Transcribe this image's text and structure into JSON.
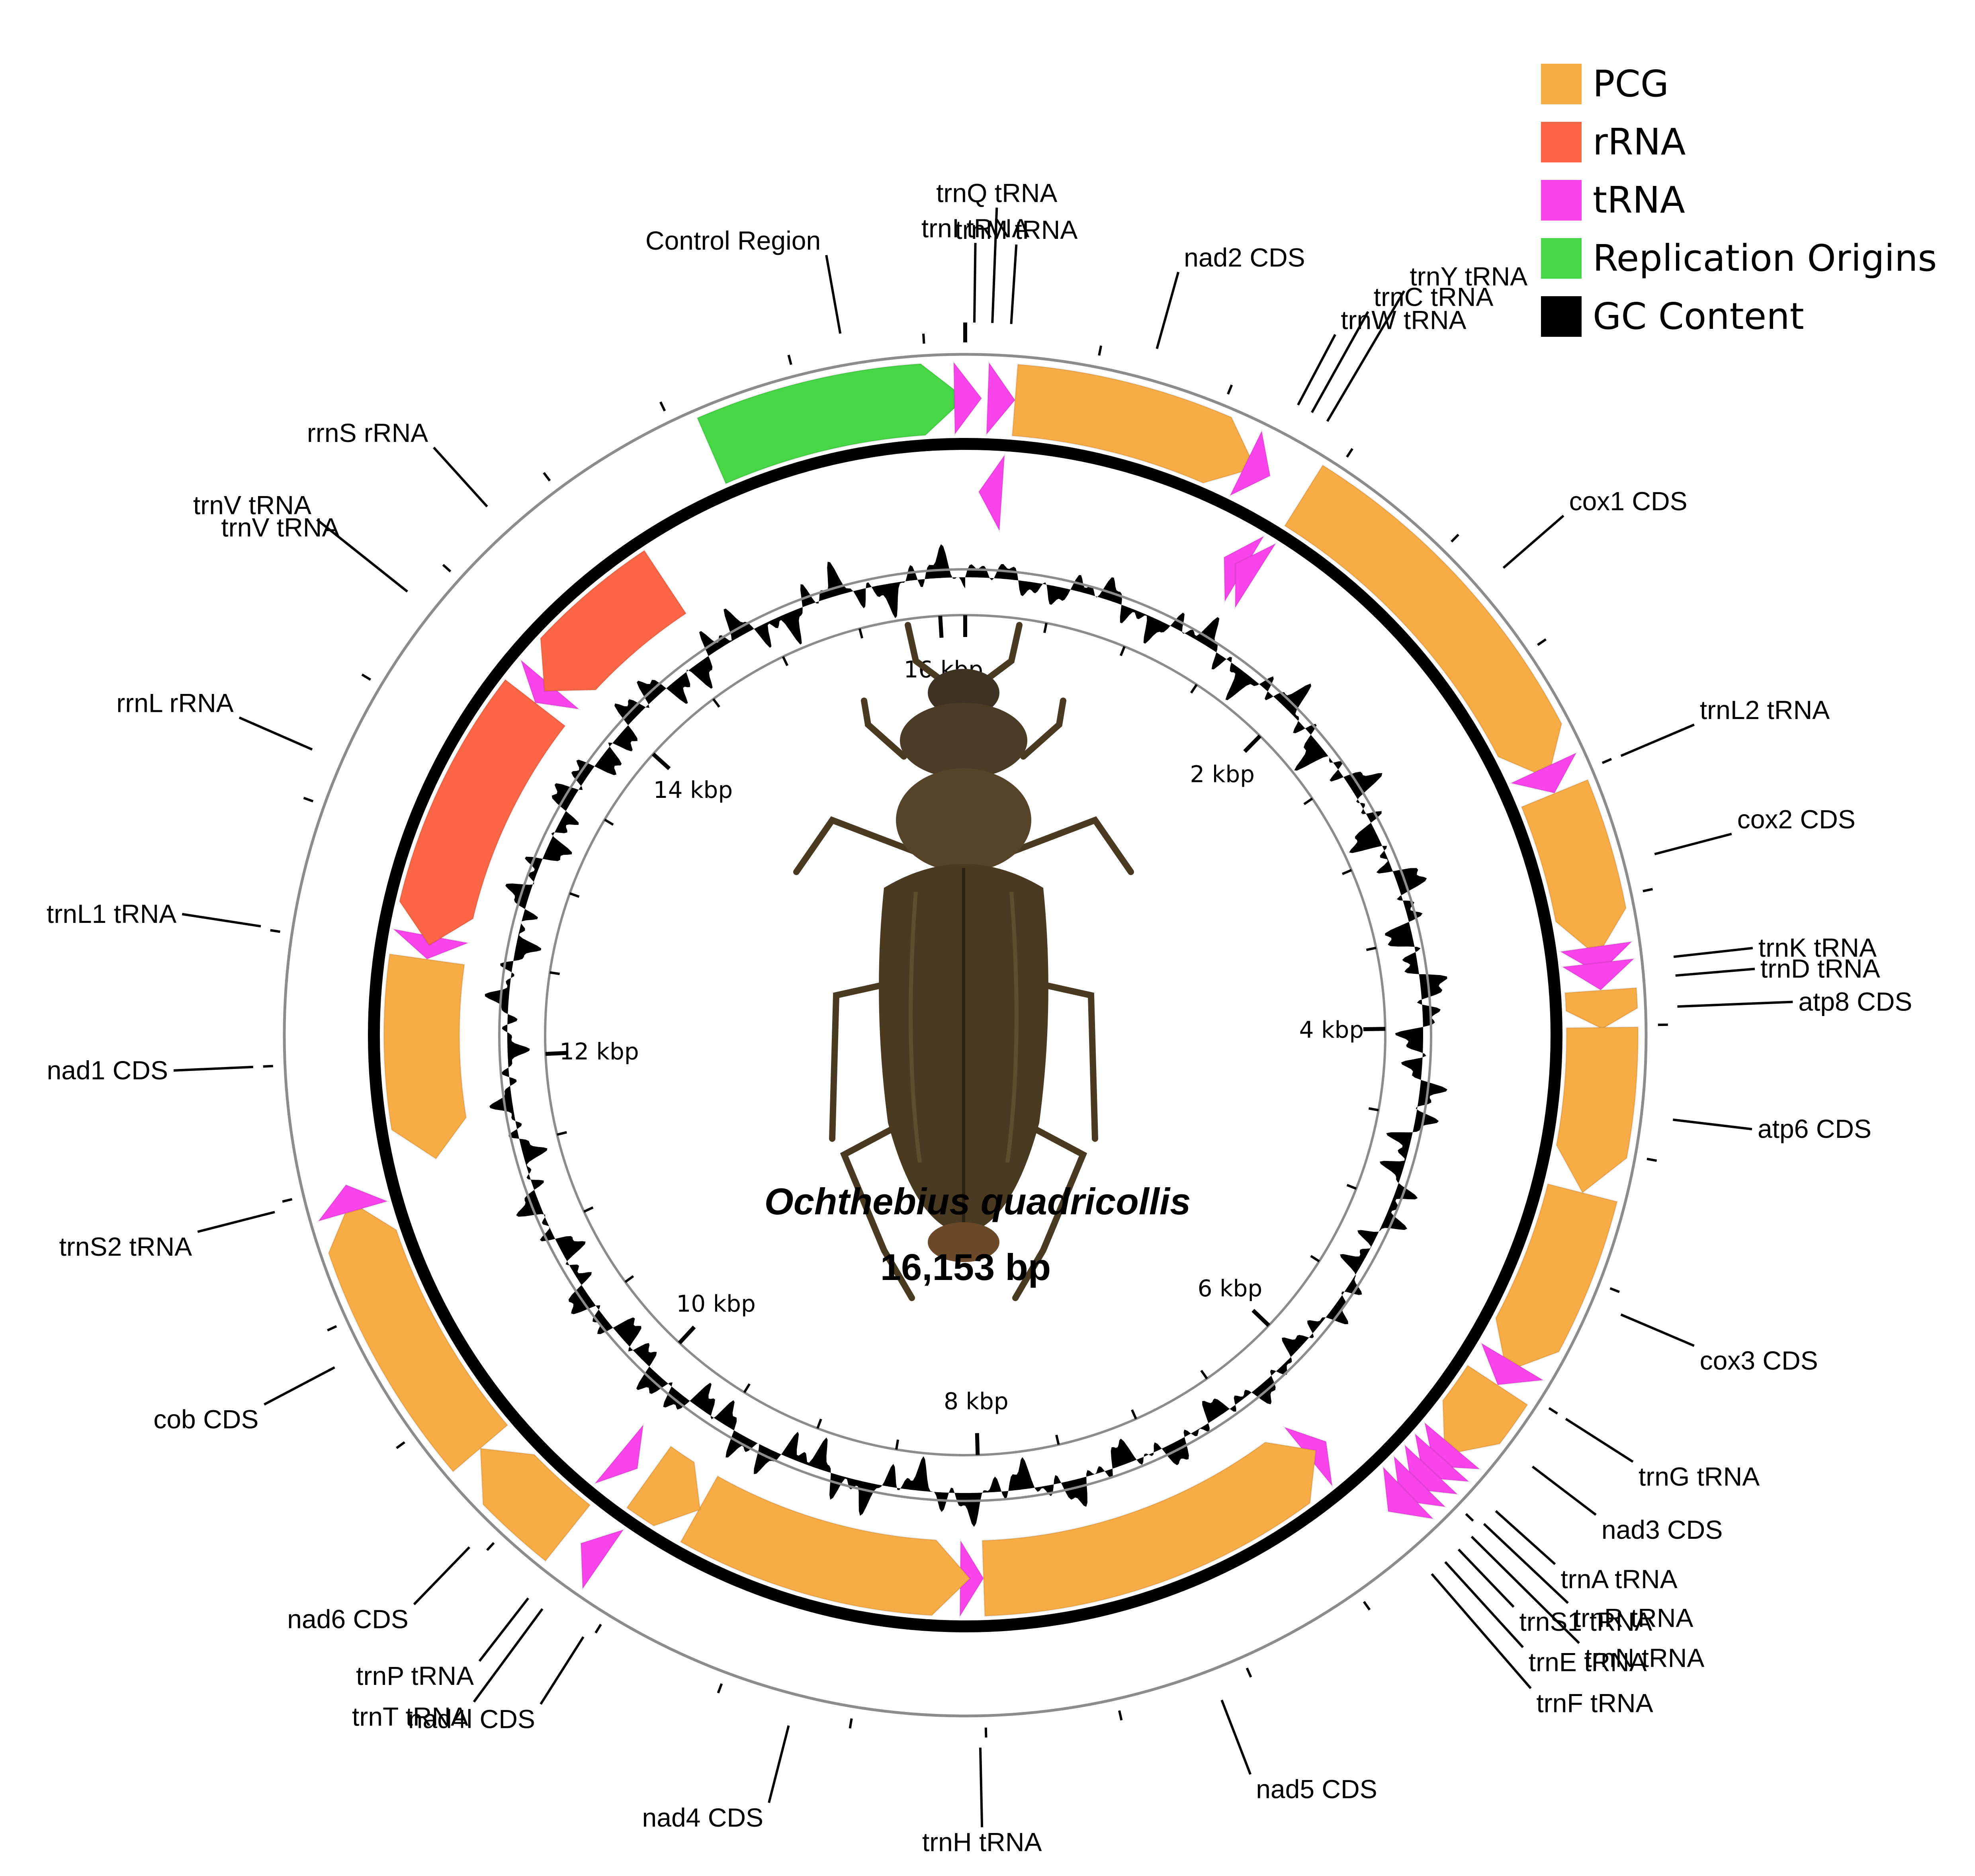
{
  "title": "Ochthebius quadricollis",
  "genome_length_label": "16,153 bp",
  "genome_length": 16153,
  "legend": [
    {
      "label": "PCG",
      "color": "#F8AC46"
    },
    {
      "label": "rRNA",
      "color": "#FC6545"
    },
    {
      "label": "tRNA",
      "color": "#FA44EB"
    },
    {
      "label": "Replication Origins",
      "color": "#46D646"
    },
    {
      "label": "GC Content",
      "color": "#000000"
    }
  ],
  "kbp_labels": [
    "2 kbp",
    "4 kbp",
    "6 kbp",
    "8 kbp",
    "10 kbp",
    "12 kbp",
    "14 kbp",
    "16 kbp"
  ],
  "kbp_values": [
    2000,
    4000,
    6000,
    8000,
    10000,
    12000,
    14000,
    16000
  ],
  "features": [
    {
      "name": "Control Region",
      "type": "origin",
      "start": 15100,
      "end": 16153,
      "strand": 1
    },
    {
      "name": "trnI",
      "type": "tRNA",
      "start": 0,
      "end": 66,
      "strand": 1
    },
    {
      "name": "trnQ",
      "type": "tRNA",
      "start": 64,
      "end": 132,
      "strand": -1
    },
    {
      "name": "trnM",
      "type": "tRNA",
      "start": 132,
      "end": 201,
      "strand": 1
    },
    {
      "name": "nad2",
      "type": "PCG",
      "start": 201,
      "end": 1216,
      "strand": 1
    },
    {
      "name": "trnW",
      "type": "tRNA",
      "start": 1215,
      "end": 1283,
      "strand": 1
    },
    {
      "name": "trnC",
      "type": "tRNA",
      "start": 1276,
      "end": 1337,
      "strand": -1
    },
    {
      "name": "trnY",
      "type": "tRNA",
      "start": 1338,
      "end": 1403,
      "strand": -1
    },
    {
      "name": "cox1",
      "type": "PCG",
      "start": 1440,
      "end": 2971,
      "strand": 1
    },
    {
      "name": "trnL2",
      "type": "tRNA",
      "start": 2971,
      "end": 3036,
      "strand": 1
    },
    {
      "name": "cox2",
      "type": "PCG",
      "start": 3037,
      "end": 3720,
      "strand": 1
    },
    {
      "name": "trnK",
      "type": "tRNA",
      "start": 3720,
      "end": 3790,
      "strand": 1
    },
    {
      "name": "trnD",
      "type": "tRNA",
      "start": 3790,
      "end": 3856,
      "strand": 1
    },
    {
      "name": "atp8",
      "type": "PCG",
      "start": 3857,
      "end": 4013,
      "strand": 1
    },
    {
      "name": "atp6",
      "type": "PCG",
      "start": 4007,
      "end": 4681,
      "strand": 1
    },
    {
      "name": "cox3",
      "type": "PCG",
      "start": 4681,
      "end": 5468,
      "strand": 1
    },
    {
      "name": "trnG",
      "type": "tRNA",
      "start": 5468,
      "end": 5532,
      "strand": 1
    },
    {
      "name": "nad3",
      "type": "PCG",
      "start": 5533,
      "end": 5887,
      "strand": 1
    },
    {
      "name": "trnA",
      "type": "tRNA",
      "start": 5886,
      "end": 5950,
      "strand": 1
    },
    {
      "name": "trnR",
      "type": "tRNA",
      "start": 5950,
      "end": 6013,
      "strand": 1
    },
    {
      "name": "trnN",
      "type": "tRNA",
      "start": 6013,
      "end": 6078,
      "strand": 1
    },
    {
      "name": "trnS1",
      "type": "tRNA",
      "start": 6078,
      "end": 6145,
      "strand": 1
    },
    {
      "name": "trnE",
      "type": "tRNA",
      "start": 6145,
      "end": 6210,
      "strand": 1
    },
    {
      "name": "trnF",
      "type": "tRNA",
      "start": 6210,
      "end": 6274,
      "strand": -1
    },
    {
      "name": "nad5",
      "type": "PCG",
      "start": 6274,
      "end": 7990,
      "strand": -1
    },
    {
      "name": "trnH",
      "type": "tRNA",
      "start": 7990,
      "end": 8054,
      "strand": -1
    },
    {
      "name": "nad4",
      "type": "PCG",
      "start": 8054,
      "end": 9392,
      "strand": -1
    },
    {
      "name": "nad4l",
      "type": "PCG",
      "start": 9386,
      "end": 9674,
      "strand": -1
    },
    {
      "name": "trnT",
      "type": "tRNA",
      "start": 9677,
      "end": 9741,
      "strand": 1
    },
    {
      "name": "trnP",
      "type": "tRNA",
      "start": 9741,
      "end": 9806,
      "strand": -1
    },
    {
      "name": "nad6",
      "type": "PCG",
      "start": 9808,
      "end": 10300,
      "strand": 1
    },
    {
      "name": "cob",
      "type": "PCG",
      "start": 10300,
      "end": 11437,
      "strand": 1
    },
    {
      "name": "trnS2",
      "type": "tRNA",
      "start": 11436,
      "end": 11505,
      "strand": 1
    },
    {
      "name": "nad1",
      "type": "PCG",
      "start": 11524,
      "end": 12475,
      "strand": -1
    },
    {
      "name": "trnL1",
      "type": "tRNA",
      "start": 12476,
      "end": 12542,
      "strand": -1
    },
    {
      "name": "rrnL",
      "type": "rRNA",
      "start": 12542,
      "end": 13807,
      "strand": -1
    },
    {
      "name": "trnV",
      "type": "tRNA",
      "start": 13807,
      "end": 13877,
      "strand": -1
    },
    {
      "name": "rrnS",
      "type": "rRNA",
      "start": 13877,
      "end": 14650,
      "strand": -1
    }
  ],
  "labels": [
    {
      "text": "Control Region",
      "pos": 15700
    },
    {
      "text": "trnI tRNA",
      "pos": 33
    },
    {
      "text": "trnQ tRNA",
      "pos": 98
    },
    {
      "text": "trnM tRNA",
      "pos": 166
    },
    {
      "text": "nad2 CDS",
      "pos": 700
    },
    {
      "text": "trnW tRNA",
      "pos": 1249
    },
    {
      "text": "trnC tRNA",
      "pos": 1306
    },
    {
      "text": "trnY tRNA",
      "pos": 1370
    },
    {
      "text": "cox1 CDS",
      "pos": 2200
    },
    {
      "text": "trnL2 tRNA",
      "pos": 3003
    },
    {
      "text": "cox2 CDS",
      "pos": 3378
    },
    {
      "text": "trnK tRNA",
      "pos": 3755
    },
    {
      "text": "trnD tRNA",
      "pos": 3823
    },
    {
      "text": "atp8 CDS",
      "pos": 3935
    },
    {
      "text": "atp6 CDS",
      "pos": 4344
    },
    {
      "text": "cox3 CDS",
      "pos": 5074
    },
    {
      "text": "trnG tRNA",
      "pos": 5500
    },
    {
      "text": "nad3 CDS",
      "pos": 5710
    },
    {
      "text": "trnA tRNA",
      "pos": 5918
    },
    {
      "text": "trnR tRNA",
      "pos": 5981
    },
    {
      "text": "trnN tRNA",
      "pos": 6045
    },
    {
      "text": "trnS1 tRNA",
      "pos": 6111
    },
    {
      "text": "trnE tRNA",
      "pos": 6177
    },
    {
      "text": "trnF tRNA",
      "pos": 6242
    },
    {
      "text": "nad5 CDS",
      "pos": 7130
    },
    {
      "text": "trnH tRNA",
      "pos": 8022
    },
    {
      "text": "nad4 CDS",
      "pos": 8720
    },
    {
      "text": "nad4l CDS",
      "pos": 9530
    },
    {
      "text": "trnT tRNA",
      "pos": 9709
    },
    {
      "text": "trnP tRNA",
      "pos": 9773
    },
    {
      "text": "nad6 CDS",
      "pos": 10054
    },
    {
      "text": "cob CDS",
      "pos": 10868
    },
    {
      "text": "trnS2 tRNA",
      "pos": 11470
    },
    {
      "text": "nad1 CDS",
      "pos": 12000
    },
    {
      "text": "trnL1 tRNA",
      "pos": 12509
    },
    {
      "text": "rrnL rRNA",
      "pos": 13175
    },
    {
      "text": "trnV tRNA",
      "pos": 13842
    },
    {
      "text": "trnV tRNA",
      "pos": 13842
    },
    {
      "text": "rrnS rRNA",
      "pos": 14263
    }
  ]
}
